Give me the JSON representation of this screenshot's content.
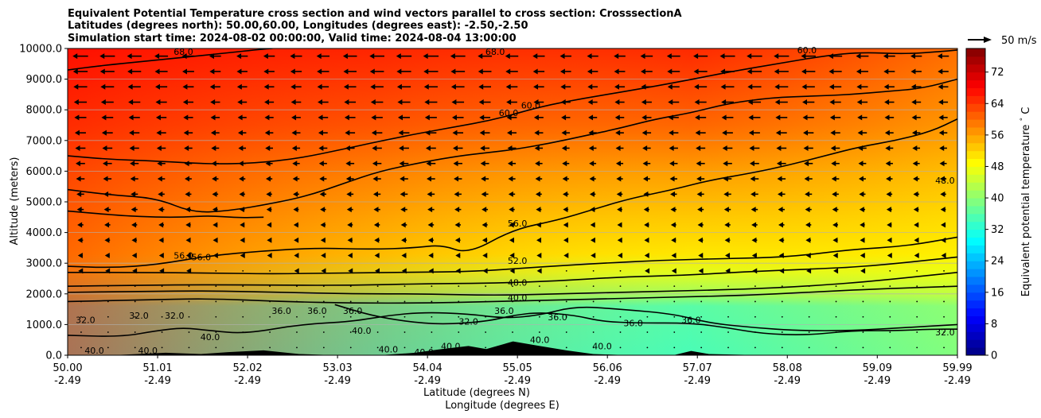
{
  "chart_data": {
    "type": "contour",
    "title_lines": [
      "Equivalent Potential Temperature cross section and wind vectors parallel to cross section: CrosssectionA",
      "Latitudes (degrees north): 50.00,60.00, Longitudes (degrees east): -2.50,-2.50",
      "Simulation start time: 2024-08-02 00:00:00, Valid time: 2024-08-04 13:00:00"
    ],
    "xlabel": "Latitude (degrees N)",
    "xlabel2": "Longitude (degrees E)",
    "ylabel": "Altitude (meters)",
    "xlim": [
      50.0,
      59.99
    ],
    "ylim": [
      0,
      10000
    ],
    "x_ticks": [
      {
        "lat": "50.00",
        "lon": "-2.49",
        "value": 50.0
      },
      {
        "lat": "51.01",
        "lon": "-2.49",
        "value": 51.01
      },
      {
        "lat": "52.02",
        "lon": "-2.49",
        "value": 52.02
      },
      {
        "lat": "53.03",
        "lon": "-2.49",
        "value": 53.03
      },
      {
        "lat": "54.04",
        "lon": "-2.49",
        "value": 54.04
      },
      {
        "lat": "55.05",
        "lon": "-2.49",
        "value": 55.05
      },
      {
        "lat": "56.06",
        "lon": "-2.49",
        "value": 56.06
      },
      {
        "lat": "57.07",
        "lon": "-2.49",
        "value": 57.07
      },
      {
        "lat": "58.08",
        "lon": "-2.49",
        "value": 58.08
      },
      {
        "lat": "59.09",
        "lon": "-2.49",
        "value": 59.09
      },
      {
        "lat": "59.99",
        "lon": "-2.49",
        "value": 59.99
      }
    ],
    "y_ticks": [
      {
        "label": "0.0",
        "value": 0
      },
      {
        "label": "1000.0",
        "value": 1000
      },
      {
        "label": "2000.0",
        "value": 2000
      },
      {
        "label": "3000.0",
        "value": 3000
      },
      {
        "label": "4000.0",
        "value": 4000
      },
      {
        "label": "5000.0",
        "value": 5000
      },
      {
        "label": "6000.0",
        "value": 6000
      },
      {
        "label": "7000.0",
        "value": 7000
      },
      {
        "label": "8000.0",
        "value": 8000
      },
      {
        "label": "9000.0",
        "value": 9000
      },
      {
        "label": "10000.0",
        "value": 10000
      }
    ],
    "grid": "horizontal",
    "colorbar": {
      "label": "Equivalent potential temperature $^\\circ$C",
      "label_text": "Equivalent potential temperature ",
      "label_degree": "°",
      "label_unit": " C",
      "range": [
        0,
        78
      ],
      "ticks": [
        "0",
        "8",
        "16",
        "24",
        "32",
        "40",
        "48",
        "56",
        "64",
        "72"
      ],
      "tick_values": [
        0,
        8,
        16,
        24,
        32,
        40,
        48,
        56,
        64,
        72
      ],
      "colormap": "jet"
    },
    "quiver_key": "50 m/s",
    "contour_levels": [
      32,
      36,
      40,
      48,
      52,
      56,
      60,
      68
    ],
    "contour_labels": [
      {
        "text": "68.0",
        "x": 51.3,
        "y": 9900
      },
      {
        "text": "68.0",
        "x": 54.8,
        "y": 9900
      },
      {
        "text": "60.0",
        "x": 58.3,
        "y": 9950
      },
      {
        "text": "60.0",
        "x": 55.2,
        "y": 8150
      },
      {
        "text": "60.0",
        "x": 54.95,
        "y": 7900
      },
      {
        "text": "56.0",
        "x": 55.05,
        "y": 4300
      },
      {
        "text": "56.0",
        "x": 51.3,
        "y": 3250
      },
      {
        "text": "56.0",
        "x": 51.5,
        "y": 3200
      },
      {
        "text": "52.0",
        "x": 55.05,
        "y": 3080
      },
      {
        "text": "48.0",
        "x": 55.05,
        "y": 2370
      },
      {
        "text": "48.0",
        "x": 59.85,
        "y": 5700
      },
      {
        "text": "40.0",
        "x": 55.05,
        "y": 1880
      },
      {
        "text": "36.0",
        "x": 52.4,
        "y": 1450
      },
      {
        "text": "36.0",
        "x": 52.8,
        "y": 1450
      },
      {
        "text": "36.0",
        "x": 53.2,
        "y": 1450
      },
      {
        "text": "36.0",
        "x": 54.9,
        "y": 1450
      },
      {
        "text": "36.0",
        "x": 55.5,
        "y": 1250
      },
      {
        "text": "36.0",
        "x": 56.35,
        "y": 1050
      },
      {
        "text": "36.0",
        "x": 57.0,
        "y": 1150
      },
      {
        "text": "32.0",
        "x": 50.2,
        "y": 1150
      },
      {
        "text": "32.0",
        "x": 50.8,
        "y": 1300
      },
      {
        "text": "32.0",
        "x": 51.2,
        "y": 1300
      },
      {
        "text": "32.0",
        "x": 54.5,
        "y": 1100
      },
      {
        "text": "32.0",
        "x": 59.85,
        "y": 750
      },
      {
        "text": "40.0",
        "x": 51.6,
        "y": 600
      },
      {
        "text": "40.0",
        "x": 53.3,
        "y": 800
      },
      {
        "text": "40.0",
        "x": 54.3,
        "y": 300
      },
      {
        "text": "40.0",
        "x": 55.3,
        "y": 500
      },
      {
        "text": "40.0",
        "x": 56.0,
        "y": 300
      },
      {
        "text": "40.0",
        "x": 50.3,
        "y": 150
      },
      {
        "text": "40.0",
        "x": 50.9,
        "y": 150
      },
      {
        "text": "40.0",
        "x": 53.6,
        "y": 200
      },
      {
        "text": "40.0",
        "x": 54.0,
        "y": 100
      }
    ],
    "contours": [
      {
        "level": 68,
        "points": [
          [
            50.0,
            9300
          ],
          [
            50.4,
            9450
          ],
          [
            51.0,
            9620
          ],
          [
            51.6,
            9800
          ],
          [
            52.2,
            9980
          ],
          [
            52.3,
            10000
          ]
        ]
      },
      {
        "level": 60,
        "points": [
          [
            50.0,
            6500
          ],
          [
            50.5,
            6380
          ],
          [
            51.0,
            6330
          ],
          [
            51.6,
            6230
          ],
          [
            52.1,
            6260
          ],
          [
            52.6,
            6420
          ],
          [
            53.1,
            6720
          ],
          [
            53.7,
            7100
          ],
          [
            54.3,
            7420
          ],
          [
            54.8,
            7680
          ],
          [
            55.3,
            8100
          ],
          [
            55.8,
            8380
          ],
          [
            56.3,
            8620
          ],
          [
            56.9,
            8930
          ],
          [
            57.4,
            9220
          ],
          [
            58.0,
            9520
          ],
          [
            58.5,
            9760
          ],
          [
            58.9,
            9880
          ],
          [
            59.4,
            9820
          ],
          [
            59.8,
            9900
          ],
          [
            59.99,
            9950
          ]
        ]
      },
      {
        "level": 56,
        "points": [
          [
            50.0,
            5400
          ],
          [
            50.5,
            5220
          ],
          [
            51.0,
            5120
          ],
          [
            51.4,
            4650
          ],
          [
            51.8,
            4700
          ],
          [
            52.3,
            4950
          ],
          [
            52.7,
            5200
          ],
          [
            53.1,
            5600
          ],
          [
            53.5,
            6000
          ],
          [
            54.0,
            6300
          ],
          [
            54.4,
            6500
          ],
          [
            54.7,
            6600
          ],
          [
            55.0,
            6700
          ],
          [
            55.4,
            6900
          ],
          [
            55.8,
            7150
          ],
          [
            56.2,
            7400
          ],
          [
            56.6,
            7700
          ],
          [
            57.0,
            7900
          ],
          [
            57.4,
            8200
          ],
          [
            57.9,
            8400
          ],
          [
            58.4,
            8450
          ],
          [
            58.8,
            8500
          ],
          [
            59.2,
            8600
          ],
          [
            59.6,
            8700
          ],
          [
            59.99,
            9000
          ]
        ]
      },
      {
        "level": 56,
        "points": [
          [
            50.0,
            4700
          ],
          [
            50.6,
            4550
          ],
          [
            51.0,
            4500
          ],
          [
            51.3,
            4500
          ],
          [
            51.6,
            4550
          ],
          [
            51.9,
            4480
          ],
          [
            52.2,
            4500
          ]
        ]
      },
      {
        "level": 52,
        "points": [
          [
            50.0,
            2900
          ],
          [
            50.5,
            2850
          ],
          [
            51.0,
            2950
          ],
          [
            51.6,
            3250
          ],
          [
            52.2,
            3400
          ],
          [
            52.8,
            3500
          ],
          [
            53.4,
            3450
          ],
          [
            53.9,
            3500
          ],
          [
            54.2,
            3600
          ],
          [
            54.5,
            3300
          ],
          [
            55.0,
            4100
          ],
          [
            55.5,
            4400
          ],
          [
            55.9,
            4750
          ],
          [
            56.3,
            5100
          ],
          [
            56.8,
            5400
          ],
          [
            57.2,
            5700
          ],
          [
            57.7,
            5950
          ],
          [
            58.1,
            6200
          ],
          [
            58.5,
            6500
          ],
          [
            58.9,
            6800
          ],
          [
            59.3,
            7000
          ],
          [
            59.7,
            7300
          ],
          [
            59.99,
            7700
          ]
        ]
      },
      {
        "level": 48,
        "points": [
          [
            50.0,
            2700
          ],
          [
            50.8,
            2700
          ],
          [
            51.6,
            2680
          ],
          [
            52.3,
            2650
          ],
          [
            53.0,
            2680
          ],
          [
            53.8,
            2700
          ],
          [
            54.6,
            2730
          ],
          [
            55.3,
            2880
          ],
          [
            56.0,
            3000
          ],
          [
            56.7,
            3100
          ],
          [
            57.4,
            3150
          ],
          [
            58.1,
            3200
          ],
          [
            58.8,
            3450
          ],
          [
            59.4,
            3550
          ],
          [
            59.99,
            3850
          ]
        ]
      },
      {
        "level": 40,
        "points": [
          [
            50.0,
            2250
          ],
          [
            50.8,
            2280
          ],
          [
            51.6,
            2300
          ],
          [
            52.4,
            2280
          ],
          [
            53.2,
            2280
          ],
          [
            54.0,
            2330
          ],
          [
            54.8,
            2350
          ],
          [
            55.5,
            2420
          ],
          [
            56.2,
            2550
          ],
          [
            56.9,
            2600
          ],
          [
            57.6,
            2720
          ],
          [
            58.3,
            2800
          ],
          [
            59.0,
            2900
          ],
          [
            59.99,
            3200
          ]
        ]
      },
      {
        "level": 36,
        "points": [
          [
            50.0,
            2050
          ],
          [
            50.8,
            2080
          ],
          [
            51.6,
            2100
          ],
          [
            52.4,
            2050
          ],
          [
            53.2,
            2000
          ],
          [
            54.0,
            2000
          ],
          [
            54.8,
            1950
          ],
          [
            55.5,
            2000
          ],
          [
            56.2,
            2050
          ],
          [
            56.9,
            2100
          ],
          [
            57.6,
            2150
          ],
          [
            58.3,
            2250
          ],
          [
            59.0,
            2400
          ],
          [
            59.99,
            2700
          ]
        ]
      },
      {
        "level": 32,
        "points": [
          [
            50.0,
            1750
          ],
          [
            50.8,
            1800
          ],
          [
            51.6,
            1850
          ],
          [
            52.4,
            1750
          ],
          [
            53.2,
            1700
          ],
          [
            54.0,
            1700
          ],
          [
            54.8,
            1750
          ],
          [
            55.5,
            1800
          ],
          [
            56.2,
            1850
          ],
          [
            56.9,
            1900
          ],
          [
            57.6,
            1950
          ],
          [
            58.3,
            2050
          ],
          [
            59.0,
            2150
          ],
          [
            59.99,
            2250
          ]
        ]
      },
      {
        "level": 40,
        "points": [
          [
            50.0,
            650
          ],
          [
            50.6,
            600
          ],
          [
            51.0,
            800
          ],
          [
            51.3,
            900
          ],
          [
            51.6,
            800
          ],
          [
            52.0,
            700
          ],
          [
            52.6,
            1000
          ],
          [
            53.2,
            1100
          ],
          [
            53.6,
            1300
          ],
          [
            54.0,
            1400
          ],
          [
            54.5,
            1350
          ],
          [
            54.9,
            1200
          ],
          [
            55.3,
            1300
          ],
          [
            55.7,
            1600
          ],
          [
            56.2,
            1500
          ],
          [
            56.8,
            1350
          ],
          [
            57.2,
            1050
          ],
          [
            57.7,
            900
          ],
          [
            58.2,
            800
          ],
          [
            58.8,
            800
          ],
          [
            59.4,
            900
          ],
          [
            59.99,
            1000
          ]
        ]
      },
      {
        "level": 36,
        "points": [
          [
            53.0,
            1650
          ],
          [
            53.4,
            1300
          ],
          [
            53.8,
            1100
          ],
          [
            54.2,
            1000
          ],
          [
            54.7,
            1100
          ],
          [
            55.0,
            1300
          ],
          [
            55.3,
            1400
          ],
          [
            55.7,
            1300
          ],
          [
            56.0,
            1100
          ],
          [
            56.4,
            1050
          ],
          [
            57.0,
            1050
          ],
          [
            57.4,
            900
          ],
          [
            57.8,
            700
          ],
          [
            58.3,
            650
          ],
          [
            58.8,
            800
          ],
          [
            59.3,
            800
          ],
          [
            59.7,
            850
          ],
          [
            59.99,
            850
          ]
        ]
      }
    ],
    "terrain": [
      [
        50.0,
        0
      ],
      [
        50.5,
        0
      ],
      [
        51.1,
        80
      ],
      [
        51.5,
        40
      ],
      [
        51.8,
        100
      ],
      [
        52.2,
        160
      ],
      [
        52.6,
        40
      ],
      [
        53.0,
        0
      ],
      [
        53.5,
        0
      ],
      [
        53.9,
        80
      ],
      [
        54.2,
        200
      ],
      [
        54.5,
        300
      ],
      [
        54.7,
        200
      ],
      [
        55.0,
        450
      ],
      [
        55.3,
        300
      ],
      [
        55.6,
        160
      ],
      [
        55.9,
        40
      ],
      [
        56.3,
        0
      ],
      [
        56.8,
        0
      ],
      [
        57.0,
        140
      ],
      [
        57.2,
        40
      ],
      [
        57.5,
        20
      ],
      [
        57.8,
        0
      ],
      [
        59.99,
        0
      ]
    ]
  }
}
